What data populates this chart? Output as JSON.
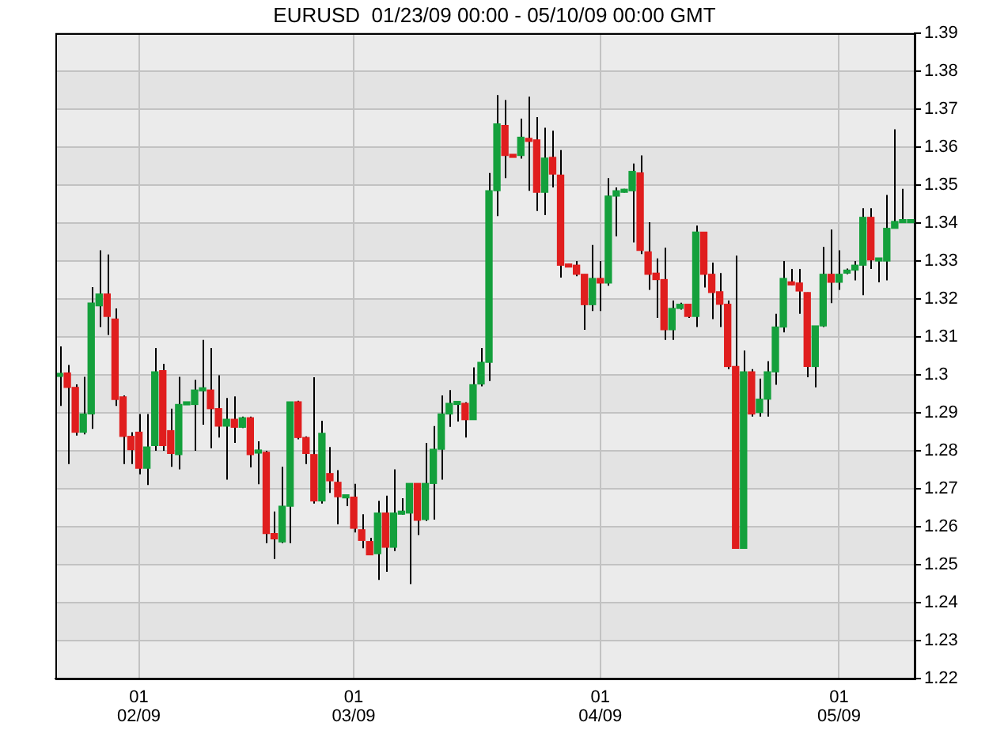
{
  "chart_data": {
    "type": "candlestick",
    "title": "EURUSD  01/23/09 00:00 - 05/10/09 00:00 GMT",
    "categories": [
      null,
      null,
      null,
      null,
      null,
      null,
      null,
      null,
      null,
      null,
      "01\n02/09",
      null,
      null,
      null,
      null,
      null,
      null,
      null,
      null,
      null,
      null,
      null,
      null,
      null,
      null,
      null,
      null,
      null,
      null,
      null,
      null,
      null,
      null,
      null,
      null,
      null,
      null,
      "01\n03/09",
      null,
      null,
      null,
      null,
      null,
      null,
      null,
      null,
      null,
      null,
      null,
      null,
      null,
      null,
      null,
      null,
      null,
      null,
      null,
      null,
      null,
      null,
      null,
      null,
      null,
      null,
      null,
      null,
      null,
      null,
      "01\n04/09",
      null,
      null,
      null,
      null,
      null,
      null,
      null,
      null,
      null,
      null,
      null,
      null,
      null,
      null,
      null,
      null,
      null,
      null,
      null,
      null,
      null,
      null,
      null,
      null,
      null,
      null,
      null,
      null,
      null,
      "01\n05/09",
      null,
      null,
      null,
      null,
      null,
      null,
      null,
      null,
      null
    ],
    "ohlc": [
      [
        1.2996,
        1.3075,
        1.2918,
        1.3004
      ],
      [
        1.3005,
        1.3026,
        1.2765,
        1.2967
      ],
      [
        1.2967,
        1.2975,
        1.284,
        1.2849
      ],
      [
        1.2849,
        1.2995,
        1.2843,
        1.2897
      ],
      [
        1.2897,
        1.3231,
        1.2858,
        1.3189
      ],
      [
        1.3182,
        1.3328,
        1.3126,
        1.3213
      ],
      [
        1.3213,
        1.3317,
        1.3105,
        1.3154
      ],
      [
        1.3147,
        1.3175,
        1.2918,
        1.2935
      ],
      [
        1.2942,
        1.2946,
        1.2765,
        1.2838
      ],
      [
        1.2838,
        1.2849,
        1.2765,
        1.2803
      ],
      [
        1.2849,
        1.2897,
        1.2738,
        1.2754
      ],
      [
        1.2754,
        1.2897,
        1.271,
        1.281
      ],
      [
        1.2814,
        1.3071,
        1.28,
        1.3008
      ],
      [
        1.3011,
        1.3029,
        1.28,
        1.2814
      ],
      [
        1.2853,
        1.2911,
        1.2758,
        1.2793
      ],
      [
        1.279,
        1.2995,
        1.2751,
        1.2922
      ],
      [
        1.2921,
        1.2929,
        1.2921,
        1.2929
      ],
      [
        1.2922,
        1.2987,
        1.28,
        1.296
      ],
      [
        1.2958,
        1.3092,
        1.2869,
        1.2966
      ],
      [
        1.296,
        1.3071,
        1.2807,
        1.2911
      ],
      [
        1.2911,
        1.2999,
        1.2835,
        1.2865
      ],
      [
        1.2865,
        1.2939,
        1.2724,
        1.2883
      ],
      [
        1.2883,
        1.2943,
        1.2821,
        1.2862
      ],
      [
        1.2862,
        1.289,
        1.286,
        1.2887
      ],
      [
        1.2887,
        1.289,
        1.2756,
        1.279
      ],
      [
        1.2794,
        1.2825,
        1.2712,
        1.2802
      ],
      [
        1.2796,
        1.28,
        1.2557,
        1.2582
      ],
      [
        1.2582,
        1.264,
        1.2515,
        1.2568
      ],
      [
        1.256,
        1.2758,
        1.2557,
        1.2654
      ],
      [
        1.2654,
        1.2929,
        1.2557,
        1.2929
      ],
      [
        1.2929,
        1.2932,
        1.283,
        1.2835
      ],
      [
        1.2835,
        1.2838,
        1.2765,
        1.2793
      ],
      [
        1.279,
        1.2994,
        1.2661,
        1.2668
      ],
      [
        1.2668,
        1.2879,
        1.2661,
        1.2846
      ],
      [
        1.274,
        1.281,
        1.2689,
        1.2721
      ],
      [
        1.2717,
        1.2749,
        1.2606,
        1.2679
      ],
      [
        1.2676,
        1.2684,
        1.2654,
        1.2684
      ],
      [
        1.2678,
        1.2713,
        1.2585,
        1.2596
      ],
      [
        1.2592,
        1.2633,
        1.2543,
        1.2564
      ],
      [
        1.2561,
        1.2571,
        1.2526,
        1.2526
      ],
      [
        1.2529,
        1.2668,
        1.246,
        1.2636
      ],
      [
        1.2636,
        1.2682,
        1.2481,
        1.2546
      ],
      [
        1.2546,
        1.2751,
        1.2536,
        1.2636
      ],
      [
        1.2633,
        1.2675,
        1.2632,
        1.2641
      ],
      [
        1.2636,
        1.2714,
        1.2449,
        1.2714
      ],
      [
        1.2714,
        1.2714,
        1.2578,
        1.2617
      ],
      [
        1.2619,
        1.2821,
        1.2615,
        1.2714
      ],
      [
        1.2714,
        1.2865,
        1.2619,
        1.2804
      ],
      [
        1.2804,
        1.2946,
        1.2724,
        1.2897
      ],
      [
        1.2897,
        1.296,
        1.2863,
        1.2925
      ],
      [
        1.2922,
        1.293,
        1.2877,
        1.293
      ],
      [
        1.2925,
        1.2928,
        1.2835,
        1.2882
      ],
      [
        1.2882,
        1.302,
        1.2882,
        1.2974
      ],
      [
        1.2976,
        1.3071,
        1.297,
        1.3033
      ],
      [
        1.3033,
        1.3532,
        1.2984,
        1.3485
      ],
      [
        1.3485,
        1.3737,
        1.3418,
        1.3661
      ],
      [
        1.3657,
        1.3724,
        1.3518,
        1.3578
      ],
      [
        1.3581,
        1.3581,
        1.3573,
        1.3573
      ],
      [
        1.3578,
        1.3675,
        1.357,
        1.3626
      ],
      [
        1.3623,
        1.3733,
        1.3485,
        1.3615
      ],
      [
        1.3619,
        1.3679,
        1.3432,
        1.3481
      ],
      [
        1.3481,
        1.3651,
        1.3421,
        1.3571
      ],
      [
        1.3573,
        1.3643,
        1.3494,
        1.3529
      ],
      [
        1.3526,
        1.3592,
        1.3256,
        1.3289
      ],
      [
        1.3292,
        1.3292,
        1.3284,
        1.3284
      ],
      [
        1.3289,
        1.33,
        1.326,
        1.3265
      ],
      [
        1.3265,
        1.3265,
        1.3119,
        1.3185
      ],
      [
        1.3185,
        1.3342,
        1.3168,
        1.3254
      ],
      [
        1.3254,
        1.33,
        1.3168,
        1.3242
      ],
      [
        1.3242,
        1.3518,
        1.3235,
        1.3471
      ],
      [
        1.3471,
        1.3494,
        1.3365,
        1.3485
      ],
      [
        1.3481,
        1.349,
        1.348,
        1.3489
      ],
      [
        1.3485,
        1.3557,
        1.3349,
        1.3536
      ],
      [
        1.3532,
        1.3578,
        1.3318,
        1.3328
      ],
      [
        1.3324,
        1.3402,
        1.3224,
        1.3265
      ],
      [
        1.3268,
        1.3307,
        1.315,
        1.3251
      ],
      [
        1.3251,
        1.3335,
        1.3092,
        1.3119
      ],
      [
        1.3119,
        1.3196,
        1.3092,
        1.3175
      ],
      [
        1.3175,
        1.319,
        1.3172,
        1.3186
      ],
      [
        1.3186,
        1.3186,
        1.315,
        1.3154
      ],
      [
        1.3154,
        1.3393,
        1.3126,
        1.3376
      ],
      [
        1.3376,
        1.3376,
        1.323,
        1.3265
      ],
      [
        1.3265,
        1.3296,
        1.3147,
        1.3217
      ],
      [
        1.3219,
        1.3268,
        1.3126,
        1.3186
      ],
      [
        1.3186,
        1.3196,
        1.3015,
        1.3022
      ],
      [
        1.3022,
        1.3314,
        1.2543,
        1.2543
      ],
      [
        1.2543,
        1.3064,
        1.2543,
        1.3008
      ],
      [
        1.3008,
        1.3015,
        1.289,
        1.2897
      ],
      [
        1.2901,
        1.299,
        1.289,
        1.2936
      ],
      [
        1.2936,
        1.3036,
        1.289,
        1.3008
      ],
      [
        1.3008,
        1.3161,
        1.2974,
        1.3126
      ],
      [
        1.3126,
        1.33,
        1.3112,
        1.3254
      ],
      [
        1.3245,
        1.3279,
        1.3236,
        1.3237
      ],
      [
        1.3242,
        1.3279,
        1.3161,
        1.3221
      ],
      [
        1.3217,
        1.3217,
        1.2994,
        1.3022
      ],
      [
        1.3022,
        1.3129,
        1.2967,
        1.3129
      ],
      [
        1.3129,
        1.3337,
        1.3126,
        1.3265
      ],
      [
        1.3265,
        1.3383,
        1.3189,
        1.3244
      ],
      [
        1.3244,
        1.3328,
        1.3224,
        1.3265
      ],
      [
        1.3268,
        1.328,
        1.3265,
        1.3276
      ],
      [
        1.3276,
        1.33,
        1.3249,
        1.3289
      ],
      [
        1.3289,
        1.3439,
        1.321,
        1.3415
      ],
      [
        1.3415,
        1.3439,
        1.3279,
        1.3303
      ],
      [
        1.33,
        1.3308,
        1.3244,
        1.3308
      ],
      [
        1.33,
        1.3474,
        1.3249,
        1.3386
      ],
      [
        1.3386,
        1.3647,
        1.3386,
        1.3404
      ],
      [
        1.3401,
        1.349,
        1.3401,
        1.3409
      ],
      [
        1.3401,
        1.3409,
        1.3401,
        1.3409
      ]
    ],
    "colors": [
      "#14a03c",
      "#e01e1e",
      "#e01e1e",
      "#14a03c",
      "#14a03c",
      "#14a03c",
      "#e01e1e",
      "#e01e1e",
      "#e01e1e",
      "#e01e1e",
      "#e01e1e",
      "#14a03c",
      "#14a03c",
      "#e01e1e",
      "#e01e1e",
      "#14a03c",
      "#14a03c",
      "#14a03c",
      "#14a03c",
      "#e01e1e",
      "#e01e1e",
      "#14a03c",
      "#e01e1e",
      "#14a03c",
      "#e01e1e",
      "#14a03c",
      "#e01e1e",
      "#e01e1e",
      "#14a03c",
      "#14a03c",
      "#e01e1e",
      "#e01e1e",
      "#e01e1e",
      "#14a03c",
      "#e01e1e",
      "#e01e1e",
      "#14a03c",
      "#e01e1e",
      "#e01e1e",
      "#e01e1e",
      "#14a03c",
      "#e01e1e",
      "#14a03c",
      "#14a03c",
      "#14a03c",
      "#e01e1e",
      "#14a03c",
      "#14a03c",
      "#14a03c",
      "#14a03c",
      "#14a03c",
      "#e01e1e",
      "#14a03c",
      "#14a03c",
      "#14a03c",
      "#14a03c",
      "#e01e1e",
      "#e01e1e",
      "#14a03c",
      "#e01e1e",
      "#e01e1e",
      "#14a03c",
      "#e01e1e",
      "#e01e1e",
      "#e01e1e",
      "#e01e1e",
      "#e01e1e",
      "#14a03c",
      "#e01e1e",
      "#14a03c",
      "#14a03c",
      "#14a03c",
      "#14a03c",
      "#e01e1e",
      "#e01e1e",
      "#e01e1e",
      "#e01e1e",
      "#14a03c",
      "#14a03c",
      "#e01e1e",
      "#14a03c",
      "#e01e1e",
      "#e01e1e",
      "#e01e1e",
      "#e01e1e",
      "#e01e1e",
      "#14a03c",
      "#e01e1e",
      "#14a03c",
      "#14a03c",
      "#14a03c",
      "#14a03c",
      "#e01e1e",
      "#e01e1e",
      "#e01e1e",
      "#14a03c",
      "#14a03c",
      "#e01e1e",
      "#14a03c",
      "#14a03c",
      "#14a03c",
      "#14a03c",
      "#e01e1e",
      "#14a03c",
      "#14a03c",
      "#14a03c",
      "#14a03c",
      "#14a03c"
    ],
    "ylim": [
      1.22,
      1.39
    ],
    "yticks": [
      1.22,
      1.23,
      1.24,
      1.25,
      1.26,
      1.27,
      1.28,
      1.29,
      1.3,
      1.31,
      1.32,
      1.33,
      1.34,
      1.35,
      1.36,
      1.37,
      1.38,
      1.39
    ],
    "grid": true
  }
}
